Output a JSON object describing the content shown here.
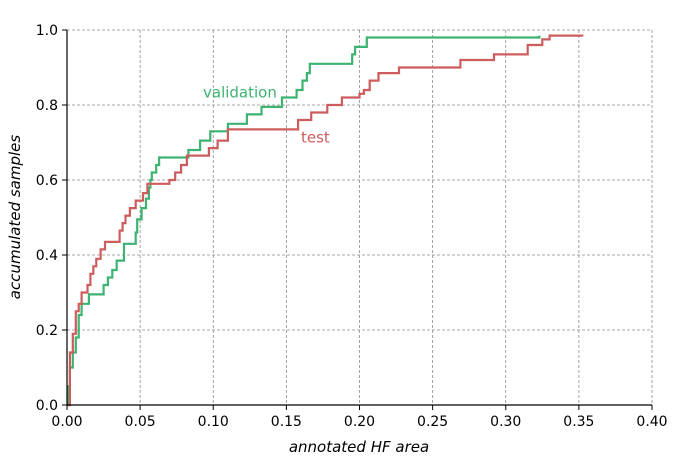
{
  "chart_data": {
    "type": "line",
    "step": true,
    "title": "",
    "xlabel": "annotated HF area",
    "ylabel": "accumulated samples",
    "xlim": [
      0.0,
      0.4
    ],
    "ylim": [
      0.0,
      1.0
    ],
    "xticks": [
      "0.00",
      "0.05",
      "0.10",
      "0.15",
      "0.20",
      "0.25",
      "0.30",
      "0.35",
      "0.40"
    ],
    "yticks": [
      "0.0",
      "0.2",
      "0.4",
      "0.6",
      "0.8",
      "1.0"
    ],
    "grid": true,
    "legend": "inline labels",
    "series": [
      {
        "name": "validation",
        "color": "#3cb371",
        "label_at": [
          0.093,
          0.82
        ],
        "points": [
          [
            0.0,
            0.0
          ],
          [
            0.001,
            0.05
          ],
          [
            0.002,
            0.1
          ],
          [
            0.004,
            0.14
          ],
          [
            0.006,
            0.18
          ],
          [
            0.008,
            0.24
          ],
          [
            0.01,
            0.27
          ],
          [
            0.015,
            0.295
          ],
          [
            0.025,
            0.32
          ],
          [
            0.028,
            0.34
          ],
          [
            0.031,
            0.36
          ],
          [
            0.034,
            0.385
          ],
          [
            0.039,
            0.43
          ],
          [
            0.047,
            0.46
          ],
          [
            0.048,
            0.495
          ],
          [
            0.051,
            0.525
          ],
          [
            0.054,
            0.55
          ],
          [
            0.056,
            0.58
          ],
          [
            0.057,
            0.6
          ],
          [
            0.058,
            0.62
          ],
          [
            0.061,
            0.64
          ],
          [
            0.063,
            0.66
          ],
          [
            0.083,
            0.68
          ],
          [
            0.091,
            0.705
          ],
          [
            0.098,
            0.73
          ],
          [
            0.11,
            0.75
          ],
          [
            0.123,
            0.775
          ],
          [
            0.133,
            0.795
          ],
          [
            0.147,
            0.82
          ],
          [
            0.157,
            0.84
          ],
          [
            0.161,
            0.865
          ],
          [
            0.164,
            0.885
          ],
          [
            0.166,
            0.91
          ],
          [
            0.195,
            0.935
          ],
          [
            0.197,
            0.955
          ],
          [
            0.205,
            0.98
          ],
          [
            0.222,
            0.98
          ],
          [
            0.322,
            0.98
          ],
          [
            0.323,
            0.985
          ]
        ]
      },
      {
        "name": "test",
        "color": "#cd5c5c",
        "label_at": [
          0.16,
          0.7
        ],
        "points": [
          [
            0.0,
            0.0
          ],
          [
            0.002,
            0.14
          ],
          [
            0.004,
            0.19
          ],
          [
            0.006,
            0.25
          ],
          [
            0.008,
            0.27
          ],
          [
            0.01,
            0.3
          ],
          [
            0.014,
            0.32
          ],
          [
            0.016,
            0.35
          ],
          [
            0.018,
            0.37
          ],
          [
            0.02,
            0.39
          ],
          [
            0.023,
            0.415
          ],
          [
            0.026,
            0.435
          ],
          [
            0.036,
            0.465
          ],
          [
            0.038,
            0.485
          ],
          [
            0.04,
            0.505
          ],
          [
            0.043,
            0.525
          ],
          [
            0.047,
            0.545
          ],
          [
            0.052,
            0.565
          ],
          [
            0.055,
            0.59
          ],
          [
            0.07,
            0.6
          ],
          [
            0.074,
            0.62
          ],
          [
            0.078,
            0.64
          ],
          [
            0.082,
            0.665
          ],
          [
            0.097,
            0.685
          ],
          [
            0.103,
            0.705
          ],
          [
            0.11,
            0.735
          ],
          [
            0.158,
            0.76
          ],
          [
            0.167,
            0.78
          ],
          [
            0.178,
            0.8
          ],
          [
            0.188,
            0.82
          ],
          [
            0.2,
            0.83
          ],
          [
            0.203,
            0.84
          ],
          [
            0.207,
            0.865
          ],
          [
            0.213,
            0.885
          ],
          [
            0.227,
            0.9
          ],
          [
            0.269,
            0.92
          ],
          [
            0.292,
            0.935
          ],
          [
            0.315,
            0.96
          ],
          [
            0.325,
            0.975
          ],
          [
            0.33,
            0.985
          ],
          [
            0.353,
            0.985
          ]
        ]
      }
    ]
  }
}
